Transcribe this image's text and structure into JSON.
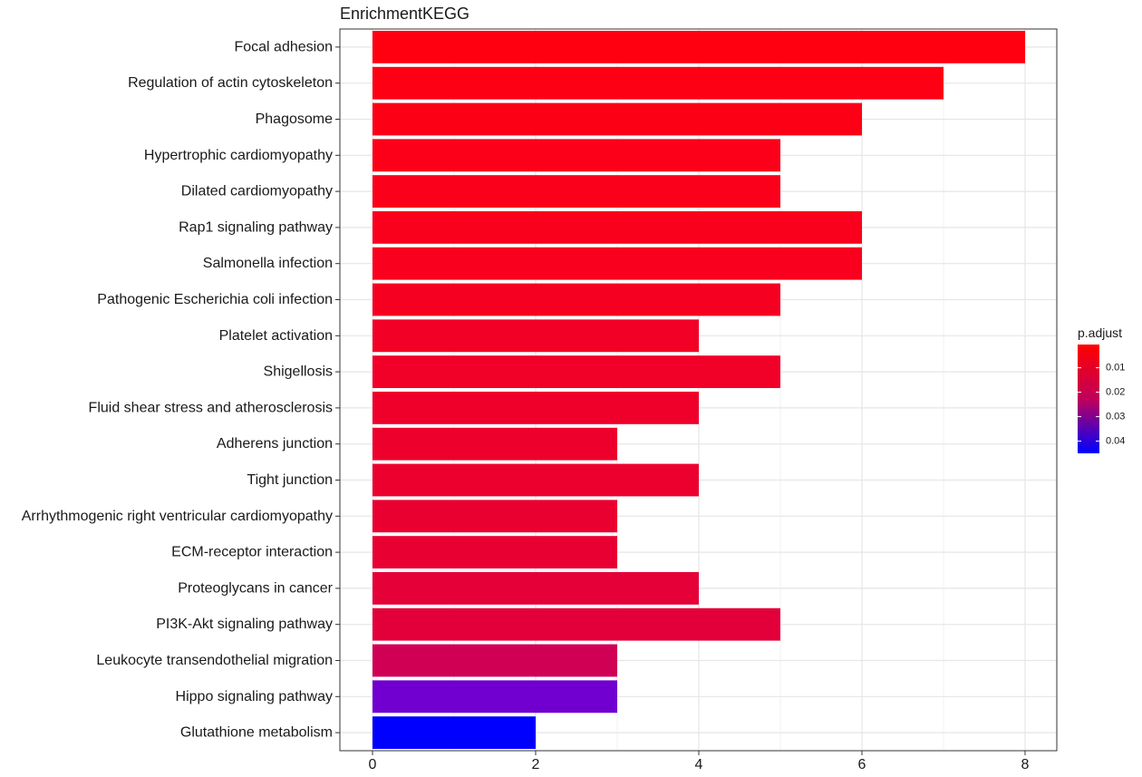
{
  "chart_data": {
    "type": "bar",
    "orientation": "horizontal",
    "title": "EnrichmentKEGG",
    "xlabel": "",
    "ylabel": "",
    "xlim": [
      0,
      8
    ],
    "xticks": [
      0,
      2,
      4,
      6,
      8
    ],
    "grid": true,
    "categories": [
      "Focal adhesion",
      "Regulation of actin cytoskeleton",
      "Phagosome",
      "Hypertrophic cardiomyopathy",
      "Dilated cardiomyopathy",
      "Rap1 signaling pathway",
      "Salmonella infection",
      "Pathogenic Escherichia coli infection",
      "Platelet activation",
      "Shigellosis",
      "Fluid shear stress and atherosclerosis",
      "Adherens junction",
      "Tight junction",
      "Arrhythmogenic right ventricular cardiomyopathy",
      "ECM-receptor interaction",
      "Proteoglycans in cancer",
      "PI3K-Akt signaling pathway",
      "Leukocyte transendothelial migration",
      "Hippo signaling pathway",
      "Glutathione metabolism"
    ],
    "values": [
      8,
      7,
      6,
      5,
      5,
      6,
      6,
      5,
      4,
      5,
      4,
      3,
      4,
      3,
      3,
      4,
      5,
      3,
      3,
      2
    ],
    "p_adjust": [
      0.0005,
      0.0008,
      0.0012,
      0.0015,
      0.0018,
      0.002,
      0.0022,
      0.003,
      0.004,
      0.0045,
      0.005,
      0.0055,
      0.006,
      0.0065,
      0.007,
      0.008,
      0.0085,
      0.014,
      0.03,
      0.045
    ],
    "colors": [
      "#FF0010",
      "#FD0014",
      "#FC0016",
      "#FB0018",
      "#FA001A",
      "#F9001C",
      "#F9001E",
      "#F60021",
      "#F20026",
      "#F10028",
      "#EF002A",
      "#EE002C",
      "#EC002E",
      "#EA0030",
      "#E90032",
      "#E50037",
      "#E3003A",
      "#D00055",
      "#7100D0",
      "#0000FF"
    ],
    "legend": {
      "title": "p.adjust",
      "position": "right",
      "labels": [
        "0.01",
        "0.02",
        "0.03",
        "0.04"
      ],
      "label_values": [
        0.01,
        0.02,
        0.03,
        0.04
      ],
      "range": [
        0.0005,
        0.045
      ],
      "color_low": "#FF0000",
      "color_high": "#0000FF"
    }
  }
}
